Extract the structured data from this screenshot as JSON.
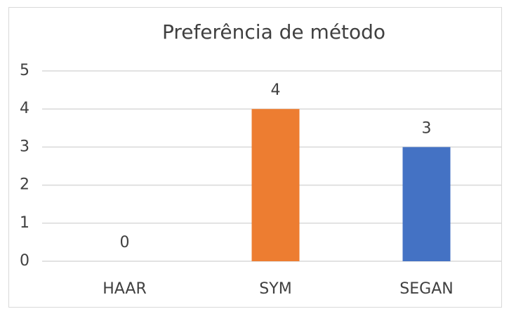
{
  "chart_data": {
    "type": "bar",
    "title": "Preferência de método",
    "categories": [
      "HAAR",
      "SYM",
      "SEGAN"
    ],
    "values": [
      0,
      4,
      3
    ],
    "colors": [
      null,
      "#ed7d31",
      "#4472c4"
    ],
    "ylim": [
      0,
      5
    ],
    "yticks": [
      0,
      1,
      2,
      3,
      4,
      5
    ],
    "grid": true
  }
}
